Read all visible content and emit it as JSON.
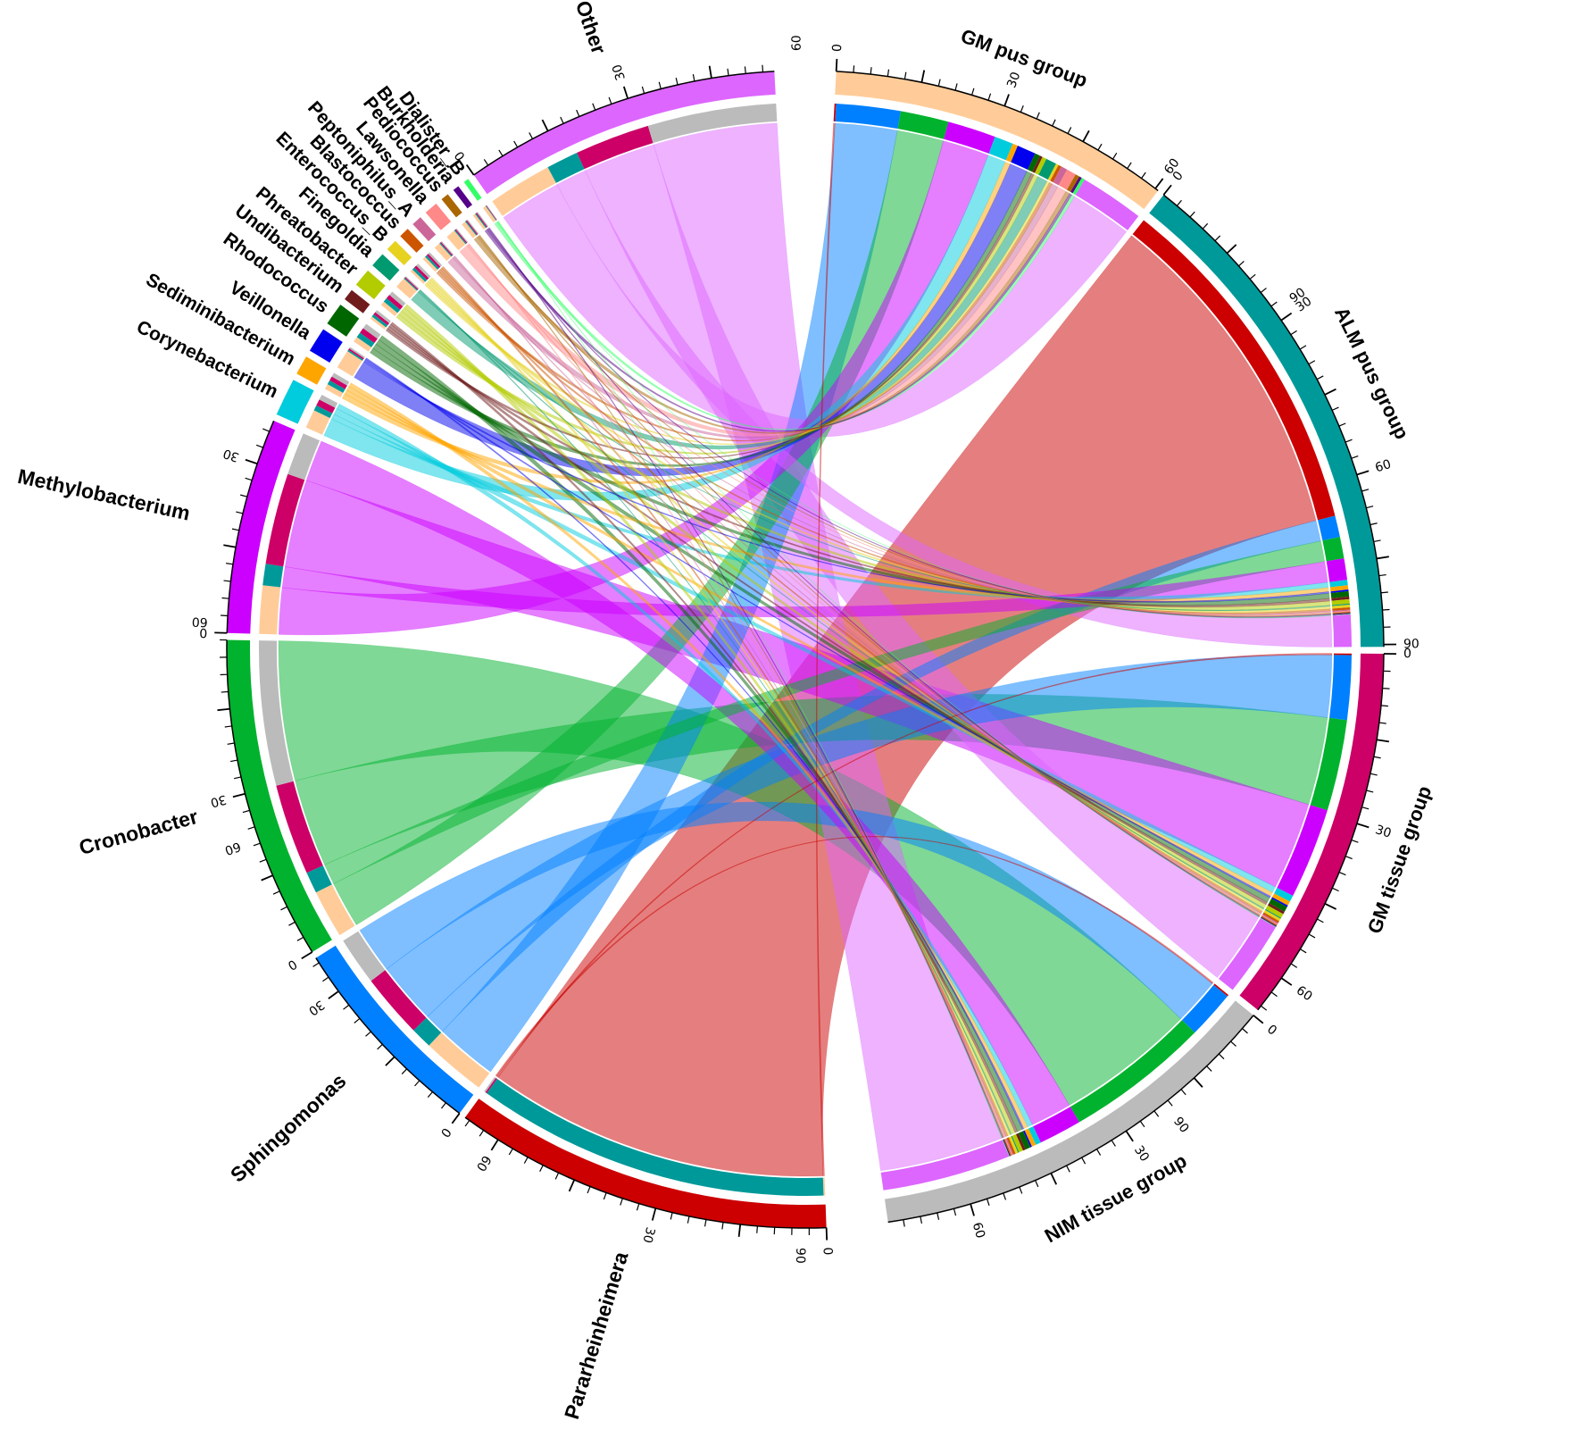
{
  "chart_data": {
    "type": "chord",
    "title": "",
    "groups": [
      {
        "name": "GM pus group",
        "color": "#FFCC99",
        "total": 100,
        "label_ticks": [
          0,
          30,
          60,
          90
        ]
      },
      {
        "name": "ALM pus group",
        "color": "#009999",
        "total": 100,
        "label_ticks": [
          0,
          30,
          60,
          90
        ]
      },
      {
        "name": "GM tissue group",
        "color": "#CC0066",
        "total": 100,
        "label_ticks": [
          0,
          30,
          60,
          90
        ]
      },
      {
        "name": "NIM tissue group",
        "color": "#BBBBBB",
        "total": 100,
        "label_ticks": [
          0,
          30,
          60,
          90
        ]
      }
    ],
    "genera": [
      {
        "name": "Pararheinheimera",
        "color": "#CC0000",
        "label_ticks": [
          0,
          30,
          60
        ]
      },
      {
        "name": "Sphingomonas",
        "color": "#0080FF",
        "label_ticks": [
          0,
          30,
          60
        ]
      },
      {
        "name": "Cronobacter",
        "color": "#00B22D",
        "label_ticks": [
          0,
          30,
          60
        ]
      },
      {
        "name": "Methylobacterium",
        "color": "#CC00FF",
        "label_ticks": [
          0,
          30
        ]
      },
      {
        "name": "Corynebacterium",
        "color": "#00CCDD",
        "label_ticks": []
      },
      {
        "name": "Sediminibacterium",
        "color": "#FFA500",
        "label_ticks": []
      },
      {
        "name": "Veillonella",
        "color": "#0000EE",
        "label_ticks": []
      },
      {
        "name": "Rhodococcus",
        "color": "#006600",
        "label_ticks": []
      },
      {
        "name": "Undibacterium",
        "color": "#701C1C",
        "label_ticks": []
      },
      {
        "name": "Phreatobacter",
        "color": "#B3CC00",
        "label_ticks": []
      },
      {
        "name": "Finegoldia",
        "color": "#009970",
        "label_ticks": []
      },
      {
        "name": "Enterococcus_B",
        "color": "#E6D21F",
        "label_ticks": []
      },
      {
        "name": "Blastococcus",
        "color": "#CC5500",
        "label_ticks": []
      },
      {
        "name": "Peptoniphilus_A",
        "color": "#CC6699",
        "label_ticks": []
      },
      {
        "name": "Lawsonella",
        "color": "#FF8888",
        "label_ticks": []
      },
      {
        "name": "Pediococcus",
        "color": "#AA6600",
        "label_ticks": []
      },
      {
        "name": "Burkholderia",
        "color": "#550088",
        "label_ticks": []
      },
      {
        "name": "Dialister_B",
        "color": "#33FF66",
        "label_ticks": []
      },
      {
        "name": "Other",
        "color": "#DD66FF",
        "label_ticks": [
          0,
          30,
          60
        ]
      }
    ],
    "matrix_columns": [
      "GM pus group",
      "ALM pus group",
      "GM tissue group",
      "NIM tissue group"
    ],
    "matrix": [
      [
        0.3,
        66.0,
        0.3,
        0.3
      ],
      [
        12.0,
        4.0,
        12.0,
        9.0
      ],
      [
        9.0,
        4.0,
        17.0,
        27.0
      ],
      [
        9.0,
        4.0,
        17.0,
        8.0
      ],
      [
        3.5,
        1.0,
        1.2,
        1.0
      ],
      [
        1.0,
        0.8,
        0.8,
        0.8
      ],
      [
        3.5,
        0.3,
        0.3,
        0.3
      ],
      [
        1.0,
        1.0,
        1.0,
        1.0
      ],
      [
        0.5,
        0.5,
        0.5,
        0.5
      ],
      [
        0.8,
        0.8,
        0.8,
        0.8
      ],
      [
        2.0,
        0.2,
        0.2,
        0.2
      ],
      [
        0.5,
        0.5,
        0.5,
        0.5
      ],
      [
        0.6,
        0.4,
        0.4,
        0.4
      ],
      [
        1.2,
        0.2,
        0.2,
        0.2
      ],
      [
        1.8,
        0.2,
        0.2,
        0.2
      ],
      [
        0.8,
        0.2,
        0.2,
        0.2
      ],
      [
        0.5,
        0.2,
        0.2,
        0.2
      ],
      [
        0.6,
        0.1,
        0.1,
        0.1
      ],
      [
        12.0,
        6.0,
        14.0,
        24.0
      ]
    ]
  }
}
